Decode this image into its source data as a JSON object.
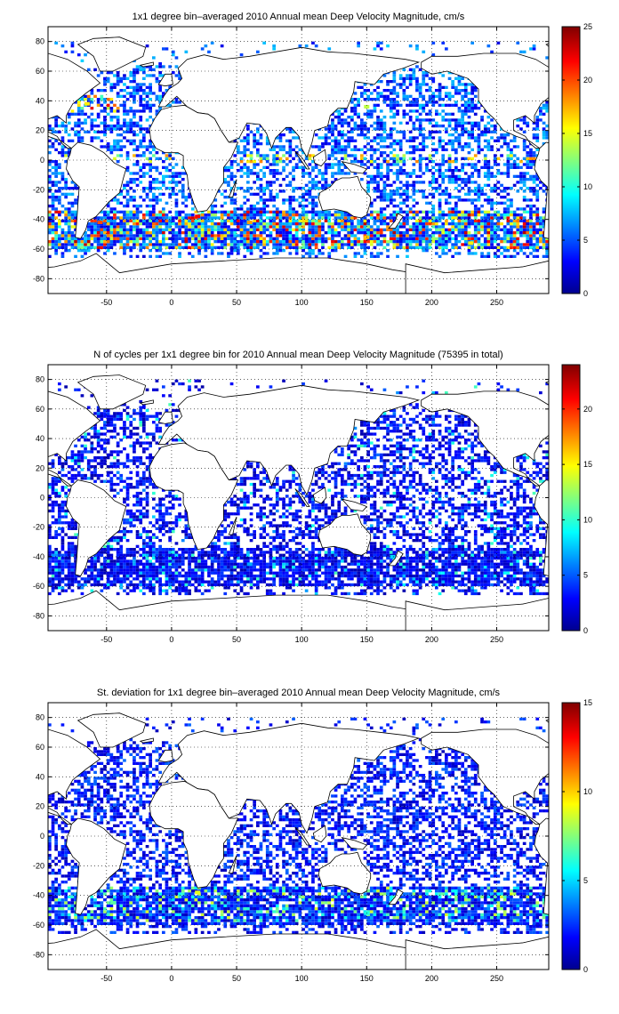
{
  "chart_data": [
    {
      "type": "heatmap",
      "title": "1x1 degree bin–averaged 2010 Annual mean Deep Velocity Magnitude, cm/s",
      "xlabel": "",
      "ylabel": "",
      "xlim": [
        -95,
        290
      ],
      "ylim": [
        -90,
        90
      ],
      "xticks": [
        -50,
        0,
        50,
        100,
        150,
        200,
        250
      ],
      "yticks": [
        80,
        60,
        40,
        20,
        0,
        -20,
        -40,
        -60,
        -80
      ],
      "grid": true,
      "colorbar": {
        "min": 0,
        "max": 25,
        "ticks": [
          0,
          5,
          10,
          15,
          20,
          25
        ],
        "colormap": "jet"
      },
      "hotspots": [
        {
          "x": -55,
          "y": -42,
          "value": 20
        },
        {
          "x": 20,
          "y": -38,
          "value": 22
        },
        {
          "x": 60,
          "y": -42,
          "value": 18
        },
        {
          "x": 150,
          "y": -52,
          "value": 17
        },
        {
          "x": 230,
          "y": -56,
          "value": 16
        },
        {
          "x": -65,
          "y": 38,
          "value": 16
        },
        {
          "x": 150,
          "y": 36,
          "value": 14
        }
      ]
    },
    {
      "type": "heatmap",
      "title": "N of cycles per 1x1 degree bin for 2010 Annual mean Deep Velocity Magnitude (75395 in total)",
      "xlabel": "",
      "ylabel": "",
      "xlim": [
        -95,
        290
      ],
      "ylim": [
        -90,
        90
      ],
      "xticks": [
        -50,
        0,
        50,
        100,
        150,
        200,
        250
      ],
      "yticks": [
        80,
        60,
        40,
        20,
        0,
        -20,
        -40,
        -60,
        -80
      ],
      "grid": true,
      "total_cycles": 75395,
      "colorbar": {
        "min": 0,
        "max": 24,
        "ticks": [
          0,
          5,
          10,
          15,
          20
        ],
        "colormap": "jet"
      },
      "hotspots": [
        {
          "x": 170,
          "y": -40,
          "value": 8
        },
        {
          "x": 60,
          "y": -45,
          "value": 7
        }
      ]
    },
    {
      "type": "heatmap",
      "title": "St. deviation for 1x1 degree bin–averaged 2010 Annual mean Deep Velocity Magnitude, cm/s",
      "xlabel": "",
      "ylabel": "",
      "xlim": [
        -95,
        290
      ],
      "ylim": [
        -90,
        90
      ],
      "xticks": [
        -50,
        0,
        50,
        100,
        150,
        200,
        250
      ],
      "yticks": [
        80,
        60,
        40,
        20,
        0,
        -20,
        -40,
        -60,
        -80
      ],
      "grid": true,
      "colorbar": {
        "min": 0,
        "max": 15,
        "ticks": [
          0,
          5,
          10,
          15
        ],
        "colormap": "jet"
      },
      "hotspots": [
        {
          "x": 20,
          "y": -38,
          "value": 9
        },
        {
          "x": -45,
          "y": -45,
          "value": 7
        },
        {
          "x": 150,
          "y": -52,
          "value": 6
        }
      ]
    }
  ]
}
